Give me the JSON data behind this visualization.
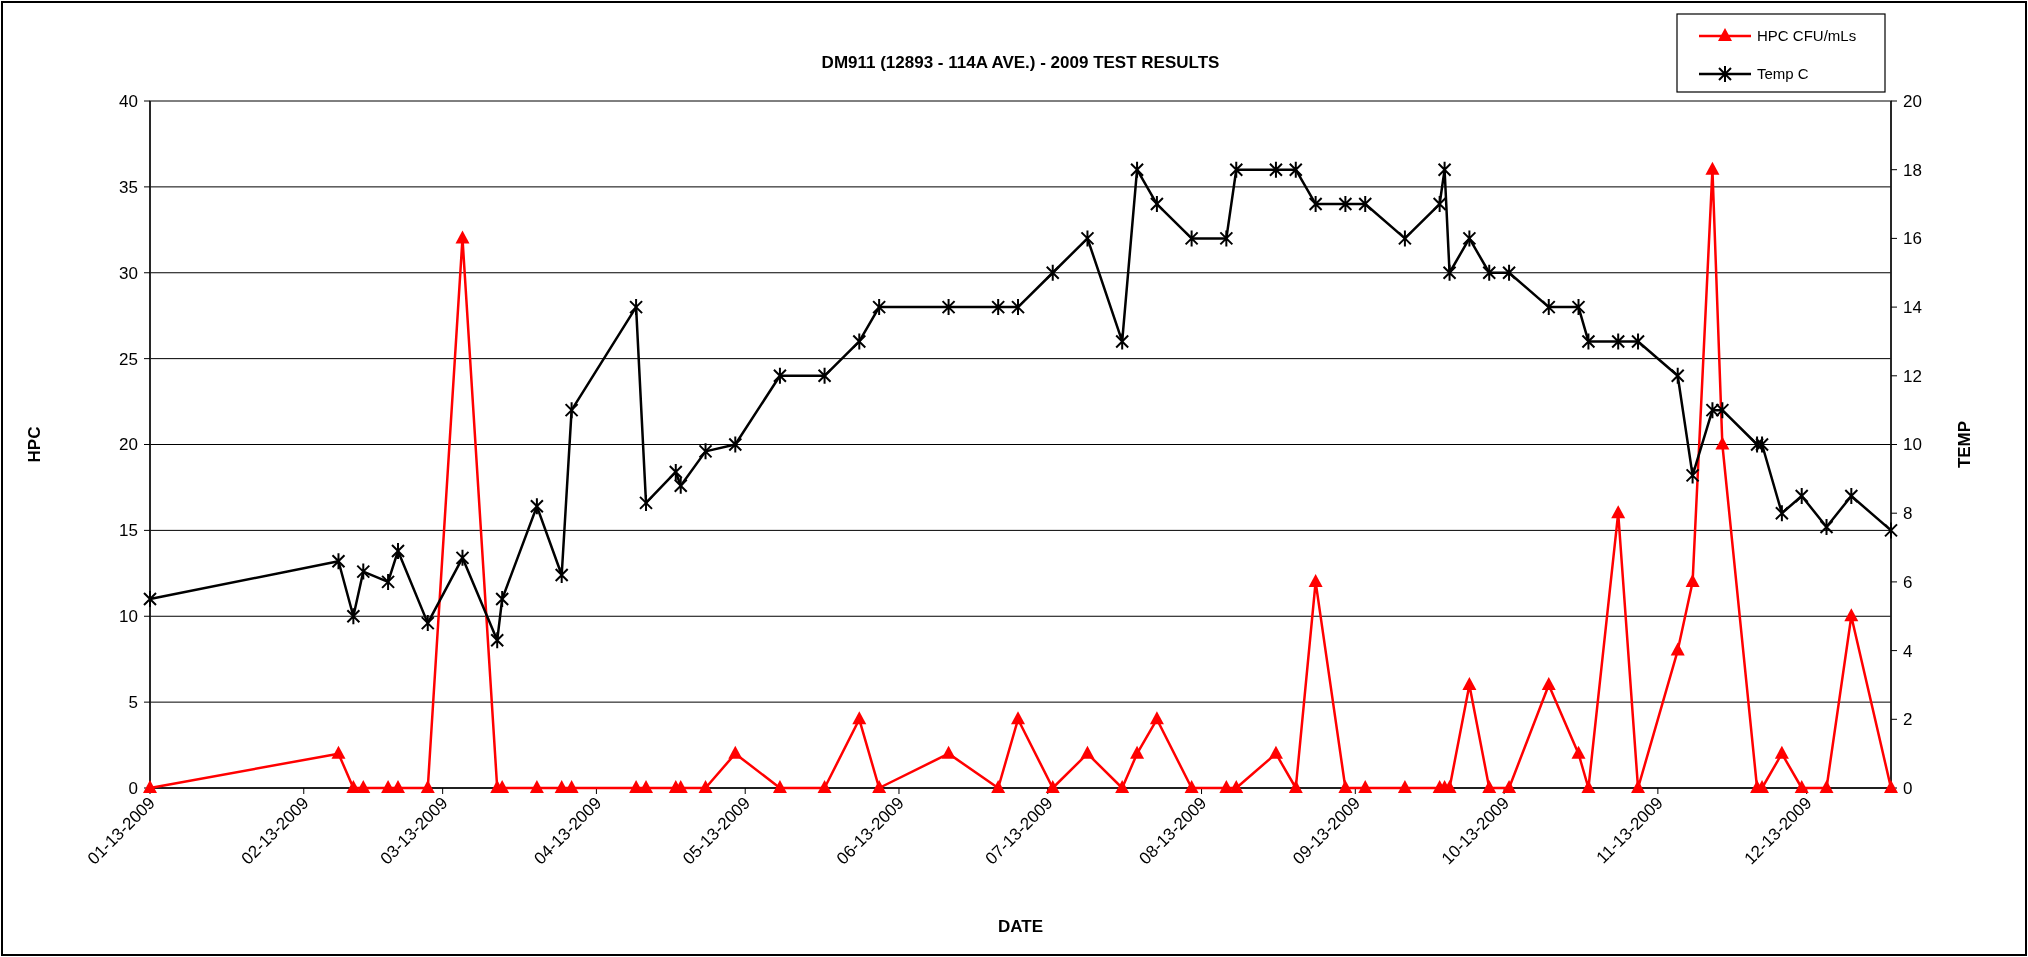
{
  "chart_data": {
    "type": "line",
    "title": "DM911 (12893 - 114A AVE.) - 2009 TEST RESULTS",
    "xlabel": "DATE",
    "ylabel": "HPC",
    "y2label": "TEMP",
    "x": [
      "2009-01-13",
      "2009-02-20",
      "2009-02-23",
      "2009-02-25",
      "2009-03-02",
      "2009-03-04",
      "2009-03-10",
      "2009-03-17",
      "2009-03-24",
      "2009-03-25",
      "2009-04-01",
      "2009-04-06",
      "2009-04-08",
      "2009-04-21",
      "2009-04-23",
      "2009-04-29",
      "2009-04-30",
      "2009-05-05",
      "2009-05-11",
      "2009-05-20",
      "2009-05-29",
      "2009-06-05",
      "2009-06-09",
      "2009-06-23",
      "2009-07-03",
      "2009-07-07",
      "2009-07-14",
      "2009-07-21",
      "2009-07-28",
      "2009-07-31",
      "2009-08-04",
      "2009-08-11",
      "2009-08-18",
      "2009-08-20",
      "2009-08-28",
      "2009-09-01",
      "2009-09-05",
      "2009-09-11",
      "2009-09-15",
      "2009-09-23",
      "2009-09-30",
      "2009-10-01",
      "2009-10-02",
      "2009-10-06",
      "2009-10-10",
      "2009-10-14",
      "2009-10-22",
      "2009-10-28",
      "2009-10-30",
      "2009-11-05",
      "2009-11-09",
      "2009-11-17",
      "2009-11-20",
      "2009-11-24",
      "2009-11-26",
      "2009-12-03",
      "2009-12-04",
      "2009-12-08",
      "2009-12-12",
      "2009-12-17",
      "2009-12-22",
      "2009-12-30"
    ],
    "series": [
      {
        "name": "HPC CFU/mLs",
        "color": "#ff0000",
        "marker": "triangle",
        "values": [
          0,
          2,
          0,
          0,
          0,
          0,
          0,
          32,
          0,
          0,
          0,
          0,
          0,
          0,
          0,
          0,
          0,
          0,
          2,
          0,
          0,
          4,
          0,
          2,
          0,
          4,
          0,
          2,
          0,
          2,
          4,
          0,
          0,
          0,
          2,
          0,
          12,
          0,
          0,
          0,
          0,
          0,
          0,
          6,
          0,
          0,
          6,
          2,
          0,
          16,
          0,
          8,
          12,
          36,
          20,
          0,
          0,
          2,
          0,
          0,
          10,
          0
        ]
      },
      {
        "name": "Temp C",
        "color": "#000000",
        "marker": "cross",
        "axis": "y2",
        "values": [
          5.5,
          6.6,
          5.0,
          6.3,
          6.0,
          6.9,
          4.8,
          6.7,
          4.3,
          5.5,
          8.2,
          6.2,
          11,
          14,
          8.3,
          9.2,
          8.8,
          9.8,
          10,
          12,
          12,
          13,
          14,
          14,
          14,
          14,
          15,
          16,
          13,
          18,
          17,
          16,
          16,
          18,
          18,
          18,
          17,
          17,
          17,
          16,
          17,
          18,
          15,
          16,
          15,
          15,
          14,
          14,
          13,
          13,
          13,
          12,
          9.1,
          11,
          11,
          10,
          10,
          8,
          8.5,
          7.6,
          8.5,
          7.5
        ]
      }
    ],
    "xlim": [
      "2009-01-13",
      "2009-12-30"
    ],
    "xticks": [
      {
        "value": "2009-01-13",
        "label": "01-13-2009"
      },
      {
        "value": "2009-02-13",
        "label": "02-13-2009"
      },
      {
        "value": "2009-03-13",
        "label": "03-13-2009"
      },
      {
        "value": "2009-04-13",
        "label": "04-13-2009"
      },
      {
        "value": "2009-05-13",
        "label": "05-13-2009"
      },
      {
        "value": "2009-06-13",
        "label": "06-13-2009"
      },
      {
        "value": "2009-07-13",
        "label": "07-13-2009"
      },
      {
        "value": "2009-08-13",
        "label": "08-13-2009"
      },
      {
        "value": "2009-09-13",
        "label": "09-13-2009"
      },
      {
        "value": "2009-10-13",
        "label": "10-13-2009"
      },
      {
        "value": "2009-11-13",
        "label": "11-13-2009"
      },
      {
        "value": "2009-12-13",
        "label": "12-13-2009"
      }
    ],
    "ylim": [
      0,
      40
    ],
    "yticks": [
      0,
      5,
      10,
      15,
      20,
      25,
      30,
      35,
      40
    ],
    "y2lim": [
      0,
      20
    ],
    "y2ticks": [
      0,
      2,
      4,
      6,
      8,
      10,
      12,
      14,
      16,
      18,
      20
    ],
    "grid": "y",
    "legend": "top right",
    "line_style": "solid"
  }
}
